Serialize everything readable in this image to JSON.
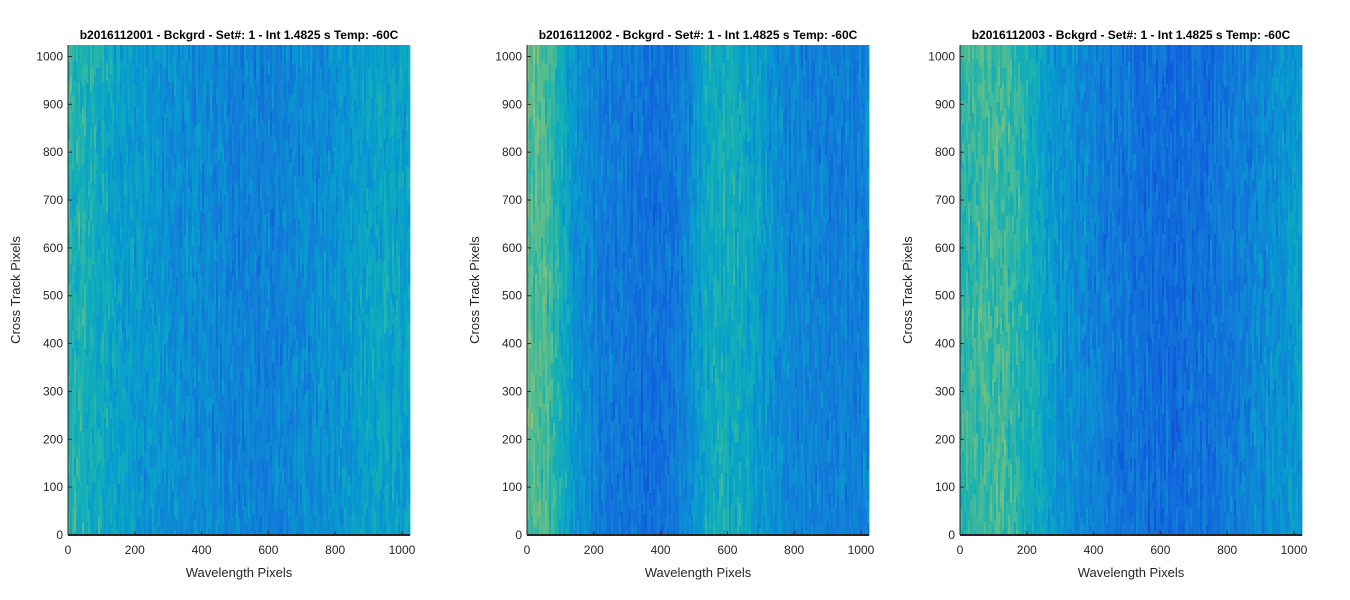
{
  "chart_data": [
    {
      "type": "heatmap",
      "title": "b2016112001 - Bckgrd - Set#: 1 - Int 1.4825 s Temp: -60C",
      "xlabel": "Wavelength Pixels",
      "ylabel": "Cross Track Pixels",
      "xlim": [
        0,
        1024
      ],
      "ylim": [
        0,
        1024
      ],
      "xticks": [
        0,
        200,
        400,
        600,
        800,
        1000
      ],
      "yticks": [
        0,
        100,
        200,
        300,
        400,
        500,
        600,
        700,
        800,
        900,
        1000
      ],
      "colormap": "parula",
      "column_profile": [
        0.62,
        0.6,
        0.55,
        0.5,
        0.48,
        0.46,
        0.44,
        0.42,
        0.42,
        0.4,
        0.38,
        0.37,
        0.36,
        0.38,
        0.4,
        0.42,
        0.44,
        0.46,
        0.5,
        0.52,
        0.52,
        0.5
      ]
    },
    {
      "type": "heatmap",
      "title": "b2016112002 - Bckgrd - Set#: 1 - Int 1.4825 s Temp: -60C",
      "xlabel": "Wavelength Pixels",
      "ylabel": "Cross Track Pixels",
      "xlim": [
        0,
        1024
      ],
      "ylim": [
        0,
        1024
      ],
      "xticks": [
        0,
        200,
        400,
        600,
        800,
        1000
      ],
      "yticks": [
        0,
        100,
        200,
        300,
        400,
        500,
        600,
        700,
        800,
        900,
        1000
      ],
      "colormap": "parula",
      "column_profile": [
        0.72,
        0.7,
        0.58,
        0.45,
        0.38,
        0.34,
        0.32,
        0.3,
        0.3,
        0.32,
        0.42,
        0.55,
        0.58,
        0.56,
        0.5,
        0.44,
        0.4,
        0.38,
        0.37,
        0.36,
        0.36,
        0.38
      ]
    },
    {
      "type": "heatmap",
      "title": "b2016112003 - Bckgrd - Set#: 1 - Int 1.4825 s Temp: -60C",
      "xlabel": "Wavelength Pixels",
      "ylabel": "Cross Track Pixels",
      "xlim": [
        0,
        1024
      ],
      "ylim": [
        0,
        1024
      ],
      "xticks": [
        0,
        200,
        400,
        600,
        800,
        1000
      ],
      "yticks": [
        0,
        100,
        200,
        300,
        400,
        500,
        600,
        700,
        800,
        900,
        1000
      ],
      "colormap": "parula",
      "column_profile": [
        0.62,
        0.66,
        0.68,
        0.66,
        0.6,
        0.52,
        0.46,
        0.42,
        0.38,
        0.35,
        0.32,
        0.3,
        0.28,
        0.27,
        0.28,
        0.3,
        0.32,
        0.35,
        0.38,
        0.42,
        0.45,
        0.48
      ]
    }
  ]
}
